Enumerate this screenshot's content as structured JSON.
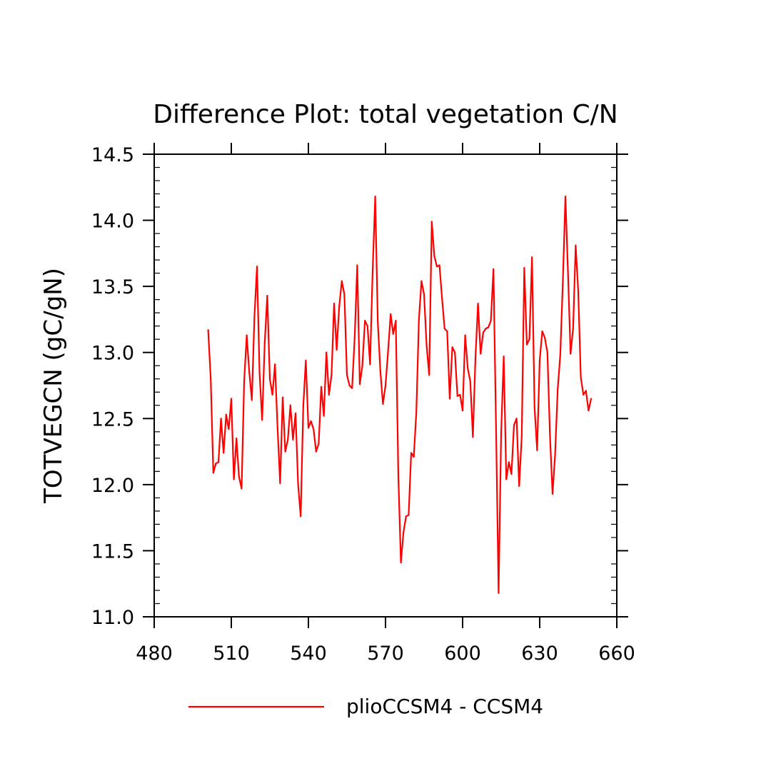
{
  "chart_data": {
    "type": "line",
    "title": "Difference Plot: total vegetation C/N",
    "xlabel": "",
    "ylabel": "TOTVEGCN  (gC/gN)",
    "xlim": [
      480,
      660
    ],
    "ylim": [
      11.0,
      14.5
    ],
    "x_ticks": [
      480,
      510,
      540,
      570,
      600,
      630,
      660
    ],
    "y_ticks": [
      11.0,
      11.5,
      12.0,
      12.5,
      13.0,
      13.5,
      14.0,
      14.5
    ],
    "x_tick_labels": [
      "480",
      "510",
      "540",
      "570",
      "600",
      "630",
      "660"
    ],
    "y_tick_labels": [
      "11.0",
      "11.5",
      "12.0",
      "12.5",
      "13.0",
      "13.5",
      "14.0",
      "14.5"
    ],
    "grid": false,
    "legend_position": "bottom",
    "series": [
      {
        "name": "plioCCSM4 - CCSM4",
        "color": "#ff0000",
        "x": [
          501,
          502,
          503,
          504,
          505,
          506,
          507,
          508,
          509,
          510,
          511,
          512,
          513,
          514,
          515,
          516,
          517,
          518,
          519,
          520,
          521,
          522,
          523,
          524,
          525,
          526,
          527,
          528,
          529,
          530,
          531,
          532,
          533,
          534,
          535,
          536,
          537,
          538,
          539,
          540,
          541,
          542,
          543,
          544,
          545,
          546,
          547,
          548,
          549,
          550,
          551,
          552,
          553,
          554,
          555,
          556,
          557,
          558,
          559,
          560,
          561,
          562,
          563,
          564,
          565,
          566,
          567,
          568,
          569,
          570,
          571,
          572,
          573,
          574,
          575,
          576,
          577,
          578,
          579,
          580,
          581,
          582,
          583,
          584,
          585,
          586,
          587,
          588,
          589,
          590,
          591,
          592,
          593,
          594,
          595,
          596,
          597,
          598,
          599,
          600,
          601,
          602,
          603,
          604,
          605,
          606,
          607,
          608,
          609,
          610,
          611,
          612,
          613,
          614,
          615,
          616,
          617,
          618,
          619,
          620,
          621,
          622,
          623,
          624,
          625,
          626,
          627,
          628,
          629,
          630,
          631,
          632,
          633,
          634,
          635,
          636,
          637,
          638,
          639,
          640,
          641,
          642,
          643,
          644,
          645,
          646,
          647,
          648,
          649,
          650
        ],
        "y": [
          13.17,
          12.8,
          12.09,
          12.16,
          12.17,
          12.5,
          12.24,
          12.53,
          12.42,
          12.65,
          12.04,
          12.35,
          12.06,
          11.97,
          12.78,
          13.13,
          12.85,
          12.64,
          13.27,
          13.65,
          12.84,
          12.49,
          13.07,
          13.43,
          12.8,
          12.68,
          12.91,
          12.43,
          12.01,
          12.66,
          12.25,
          12.34,
          12.6,
          12.34,
          12.54,
          12.0,
          11.76,
          12.59,
          12.94,
          12.43,
          12.48,
          12.42,
          12.25,
          12.31,
          12.74,
          12.52,
          13.0,
          12.68,
          12.83,
          13.37,
          13.02,
          13.35,
          13.54,
          13.44,
          12.83,
          12.75,
          12.73,
          13.11,
          13.66,
          12.76,
          12.9,
          13.24,
          13.2,
          12.91,
          13.62,
          14.18,
          13.23,
          12.86,
          12.61,
          12.75,
          13.01,
          13.29,
          13.14,
          13.24,
          12.06,
          11.41,
          11.64,
          11.76,
          11.77,
          12.24,
          12.21,
          12.55,
          13.25,
          13.54,
          13.44,
          13.05,
          12.83,
          13.99,
          13.73,
          13.65,
          13.66,
          13.41,
          13.18,
          13.16,
          12.65,
          13.04,
          13.0,
          12.67,
          12.68,
          12.56,
          13.13,
          12.88,
          12.78,
          12.36,
          12.96,
          13.37,
          12.99,
          13.15,
          13.18,
          13.19,
          13.24,
          13.63,
          12.45,
          11.18,
          12.39,
          12.97,
          12.04,
          12.17,
          12.08,
          12.45,
          12.5,
          11.99,
          12.36,
          13.64,
          13.06,
          13.1,
          13.72,
          12.58,
          12.26,
          12.94,
          13.16,
          13.11,
          13.0,
          12.37,
          11.93,
          12.23,
          12.72,
          12.98,
          13.53,
          14.18,
          13.61,
          12.99,
          13.18,
          13.81,
          13.46,
          12.81,
          12.68,
          12.71,
          12.56,
          12.65
        ]
      }
    ]
  }
}
